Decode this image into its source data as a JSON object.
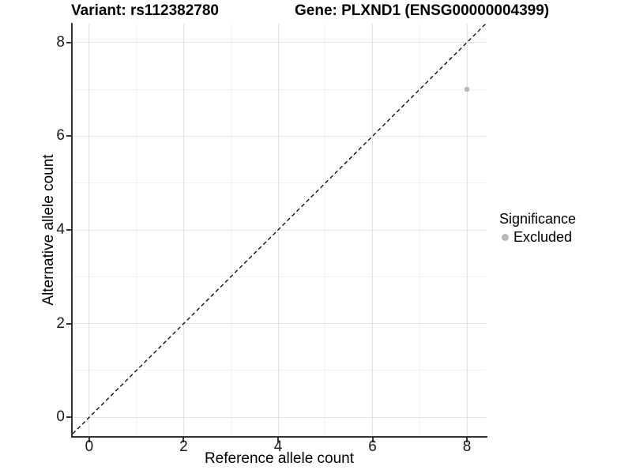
{
  "figure": {
    "title_left": "Variant: rs112382780",
    "title_right": "Gene: PLXND1 (ENSG00000004399)"
  },
  "chart_data": {
    "type": "scatter",
    "title": "Variant: rs112382780   Gene: PLXND1 (ENSG00000004399)",
    "xlabel": "Reference allele count",
    "ylabel": "Alternative allele count",
    "xlim": [
      -0.35,
      8.4
    ],
    "ylim": [
      -0.4,
      8.4
    ],
    "x_ticks": [
      0,
      2,
      4,
      6,
      8
    ],
    "y_ticks": [
      0,
      2,
      4,
      6,
      8
    ],
    "x_minor_ticks": [
      1,
      3,
      5,
      7
    ],
    "y_minor_ticks": [
      1,
      3,
      5,
      7
    ],
    "grid": "major and minor gridlines on, white background",
    "series": [
      {
        "name": "Excluded",
        "color": "#b8b8b8",
        "points": [
          {
            "x": 8,
            "y": 7
          }
        ]
      }
    ],
    "reference_line": {
      "kind": "identity y = x",
      "slope": 1,
      "intercept": 0,
      "style": "dashed",
      "color": "#000000"
    },
    "legend": {
      "title": "Significance",
      "position": "right",
      "entries": [
        {
          "label": "Excluded",
          "color": "#b8b8b8"
        }
      ]
    },
    "colors": {
      "axis_line": "#333333",
      "grid_major": "#e3e3e3",
      "grid_minor": "#f1f1f1",
      "tick_label": "#1a1a1a",
      "point": "#b8b8b8"
    }
  }
}
